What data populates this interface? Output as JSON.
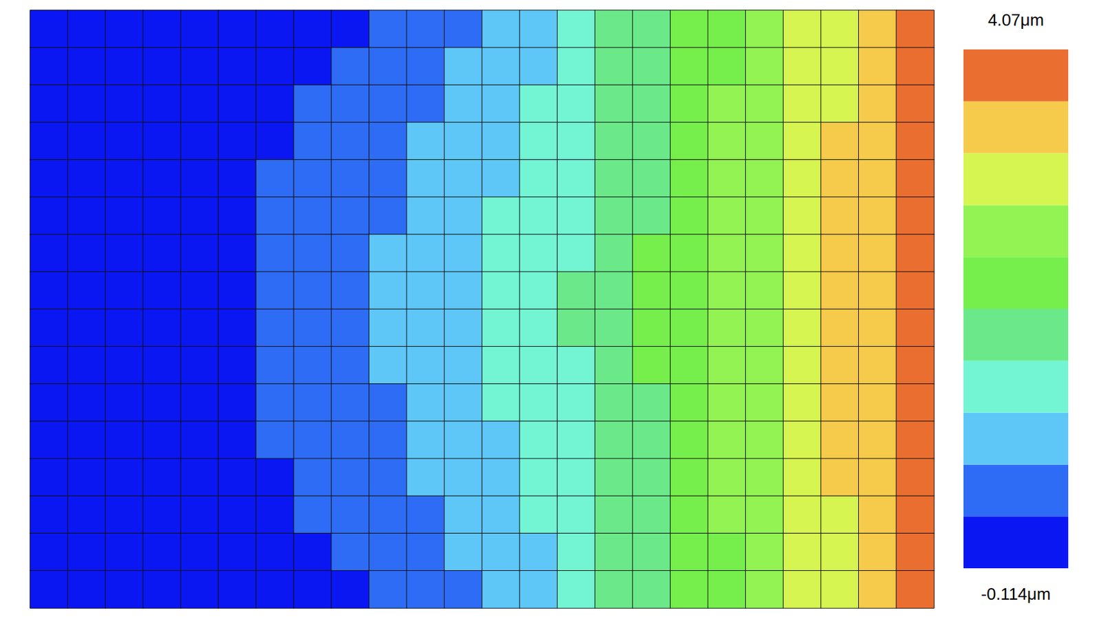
{
  "chart_data": {
    "type": "heatmap",
    "tick_labels": false,
    "colorbar_range": [
      -0.114,
      4.07
    ],
    "colorbar_ticks": [
      {
        "value": 4.07,
        "label": "4.07μm"
      },
      {
        "value": -0.114,
        "label": "-0.114μm"
      }
    ],
    "colors": [
      "#0A17F3",
      "#2E6CF5",
      "#5EC7F8",
      "#73F5D3",
      "#6BE98A",
      "#76EF4C",
      "#93F353",
      "#D6F551",
      "#F6CA4A",
      "#EB6E31"
    ],
    "cells": [
      [
        0.02,
        0.05,
        0.09,
        0.12,
        0.16,
        0.19,
        0.23,
        0.26,
        0.3,
        0.41,
        0.55,
        0.69,
        0.87,
        1.06,
        1.29,
        1.57,
        1.79,
        2.02,
        2.33,
        2.62,
        2.9,
        3.18,
        3.5,
        3.8
      ],
      [
        0.02,
        0.06,
        0.1,
        0.13,
        0.17,
        0.21,
        0.25,
        0.29,
        0.38,
        0.51,
        0.64,
        0.79,
        0.96,
        1.13,
        1.38,
        1.62,
        1.84,
        2.09,
        2.38,
        2.65,
        2.93,
        3.21,
        3.53,
        3.84
      ],
      [
        0.02,
        0.06,
        0.1,
        0.15,
        0.19,
        0.23,
        0.27,
        0.34,
        0.46,
        0.58,
        0.71,
        0.87,
        1.04,
        1.23,
        1.45,
        1.67,
        1.88,
        2.13,
        2.41,
        2.68,
        2.95,
        3.22,
        3.55,
        3.85
      ],
      [
        0.02,
        0.07,
        0.11,
        0.16,
        0.21,
        0.25,
        0.3,
        0.4,
        0.52,
        0.64,
        0.77,
        0.93,
        1.1,
        1.29,
        1.49,
        1.7,
        1.92,
        2.17,
        2.44,
        2.7,
        2.97,
        3.25,
        3.57,
        3.88
      ],
      [
        0.02,
        0.07,
        0.12,
        0.17,
        0.22,
        0.27,
        0.34,
        0.45,
        0.57,
        0.68,
        0.83,
        0.98,
        1.13,
        1.33,
        1.52,
        1.73,
        1.94,
        2.2,
        2.46,
        2.71,
        2.99,
        3.27,
        3.59,
        3.9
      ],
      [
        0.03,
        0.08,
        0.13,
        0.18,
        0.23,
        0.29,
        0.38,
        0.49,
        0.6,
        0.71,
        0.86,
        1.01,
        1.17,
        1.36,
        1.54,
        1.75,
        1.96,
        2.22,
        2.47,
        2.73,
        3.0,
        3.28,
        3.6,
        3.91
      ],
      [
        0.03,
        0.08,
        0.14,
        0.19,
        0.24,
        0.3,
        0.4,
        0.51,
        0.62,
        0.74,
        0.89,
        1.04,
        1.19,
        1.37,
        1.55,
        1.77,
        1.98,
        2.23,
        2.48,
        2.73,
        3.0,
        3.29,
        3.61,
        3.92
      ],
      [
        0.03,
        0.08,
        0.14,
        0.19,
        0.25,
        0.3,
        0.41,
        0.52,
        0.63,
        0.75,
        0.9,
        1.05,
        1.21,
        1.38,
        1.56,
        1.77,
        1.99,
        2.24,
        2.49,
        2.74,
        3.01,
        3.3,
        3.62,
        3.92
      ],
      [
        0.03,
        0.08,
        0.14,
        0.19,
        0.25,
        0.3,
        0.41,
        0.52,
        0.63,
        0.75,
        0.9,
        1.05,
        1.21,
        1.38,
        1.56,
        1.77,
        1.99,
        2.24,
        2.49,
        2.74,
        3.01,
        3.3,
        3.62,
        3.92
      ],
      [
        0.03,
        0.08,
        0.14,
        0.19,
        0.24,
        0.3,
        0.4,
        0.51,
        0.62,
        0.74,
        0.89,
        1.04,
        1.19,
        1.37,
        1.55,
        1.77,
        1.98,
        2.23,
        2.48,
        2.73,
        3.0,
        3.29,
        3.61,
        3.92
      ],
      [
        0.03,
        0.08,
        0.13,
        0.18,
        0.23,
        0.29,
        0.38,
        0.49,
        0.6,
        0.71,
        0.86,
        1.01,
        1.17,
        1.36,
        1.54,
        1.75,
        1.96,
        2.22,
        2.47,
        2.73,
        3.0,
        3.28,
        3.6,
        3.91
      ],
      [
        0.02,
        0.07,
        0.12,
        0.17,
        0.22,
        0.27,
        0.34,
        0.45,
        0.57,
        0.68,
        0.83,
        0.98,
        1.13,
        1.33,
        1.52,
        1.73,
        1.94,
        2.2,
        2.46,
        2.71,
        2.99,
        3.27,
        3.59,
        3.9
      ],
      [
        0.02,
        0.07,
        0.11,
        0.16,
        0.21,
        0.25,
        0.3,
        0.4,
        0.52,
        0.64,
        0.77,
        0.93,
        1.1,
        1.29,
        1.49,
        1.7,
        1.92,
        2.17,
        2.44,
        2.7,
        2.97,
        3.25,
        3.57,
        3.88
      ],
      [
        0.02,
        0.06,
        0.1,
        0.15,
        0.19,
        0.23,
        0.27,
        0.34,
        0.46,
        0.58,
        0.71,
        0.87,
        1.04,
        1.23,
        1.45,
        1.67,
        1.88,
        2.13,
        2.41,
        2.68,
        2.95,
        3.22,
        3.55,
        3.85
      ],
      [
        0.02,
        0.06,
        0.1,
        0.13,
        0.17,
        0.21,
        0.25,
        0.29,
        0.38,
        0.51,
        0.64,
        0.79,
        0.96,
        1.13,
        1.38,
        1.62,
        1.84,
        2.09,
        2.38,
        2.65,
        2.93,
        3.21,
        3.53,
        3.84
      ],
      [
        0.02,
        0.05,
        0.09,
        0.12,
        0.16,
        0.19,
        0.23,
        0.26,
        0.3,
        0.41,
        0.55,
        0.69,
        0.87,
        1.06,
        1.29,
        1.57,
        1.79,
        2.02,
        2.33,
        2.62,
        2.9,
        3.18,
        3.5,
        3.8
      ]
    ]
  }
}
